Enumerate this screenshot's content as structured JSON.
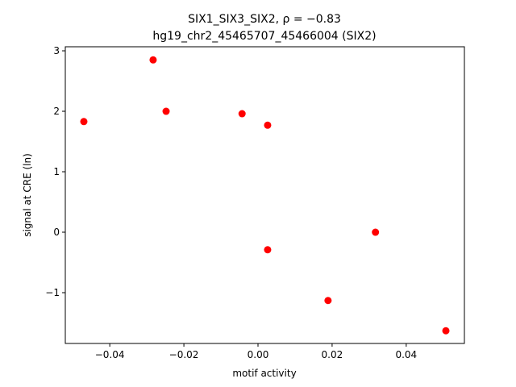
{
  "chart_data": {
    "type": "scatter",
    "title": [
      "SIX1_SIX3_SIX2, ρ = −0.83",
      "hg19_chr2_45465707_45466004 (SIX2)"
    ],
    "x_label": "motif activity",
    "y_label": "signal at CRE (ln)",
    "series": [
      {
        "color": "#ff0000",
        "x": [
          -0.047,
          -0.0283,
          -0.0248,
          -0.0043,
          0.0026,
          0.0026,
          0.0189,
          0.0317,
          0.0507
        ],
        "values": [
          1.83,
          2.85,
          2.0,
          1.96,
          1.77,
          -0.29,
          -1.13,
          0.0,
          -1.63
        ]
      }
    ],
    "xlim": [
      -0.052,
      0.0557
    ],
    "ylim": [
      -1.84,
      3.067
    ],
    "xticks": [
      {
        "value": -0.04,
        "label": "−0.04"
      },
      {
        "value": -0.02,
        "label": "−0.02"
      },
      {
        "value": 0,
        "label": "0.00"
      },
      0.02,
      0.04
    ],
    "yticks": [
      {
        "value": -1,
        "label": "−1"
      },
      0,
      1,
      2,
      3
    ],
    "grid": false
  }
}
